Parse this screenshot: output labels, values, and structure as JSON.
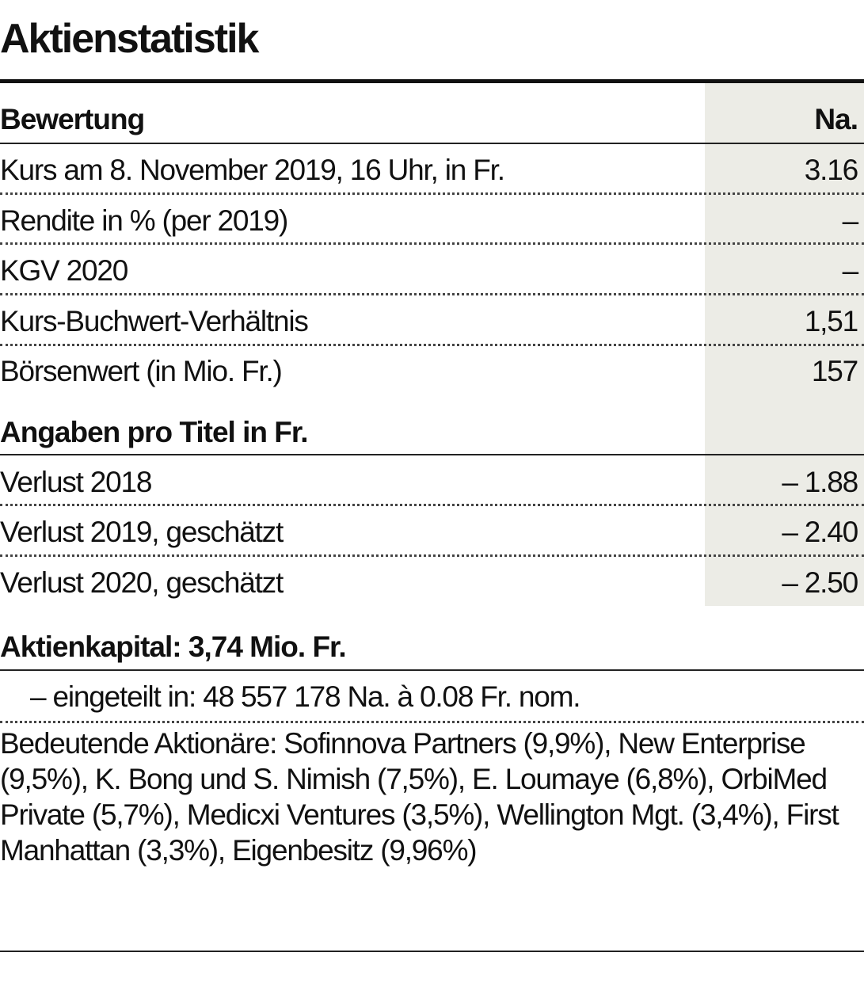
{
  "title": "Aktienstatistik",
  "valuation": {
    "heading": "Bewertung",
    "column": "Na.",
    "rows": [
      {
        "label": "Kurs am 8. November 2019, 16 Uhr, in Fr.",
        "value": "3.16"
      },
      {
        "label": "Rendite in % (per 2019)",
        "value": "–"
      },
      {
        "label": "KGV 2020",
        "value": "–"
      },
      {
        "label": "Kurs-Buchwert-Verhältnis",
        "value": "1,51"
      },
      {
        "label": "Börsenwert (in Mio. Fr.)",
        "value": "157"
      }
    ]
  },
  "per_share": {
    "heading": "Angaben pro Titel in Fr.",
    "rows": [
      {
        "label": "Verlust 2018",
        "value": "– 1.88"
      },
      {
        "label": "Verlust 2019, geschätzt",
        "value": "– 2.40"
      },
      {
        "label": "Verlust 2020, geschätzt",
        "value": "– 2.50"
      }
    ]
  },
  "capital": {
    "heading": "Aktienkapital: 3,74 Mio. Fr.",
    "divided": "– eingeteilt in: 48 557 178 Na. à 0.08 Fr. nom.",
    "shareholders": "Bedeutende Aktionäre: Sofinnova Partners (9,9%), New Enterprise (9,5%), K. Bong und S. Nimish (7,5%), E. Loumaye (6,8%), OrbiMed Private (5,7%), Medicxi Ventures (3,5%), Wellington Mgt. (3,4%), First Manhattan (3,3%), Eigenbesitz (9,96%)"
  },
  "colors": {
    "shade": "#ecece6",
    "text": "#111111"
  }
}
